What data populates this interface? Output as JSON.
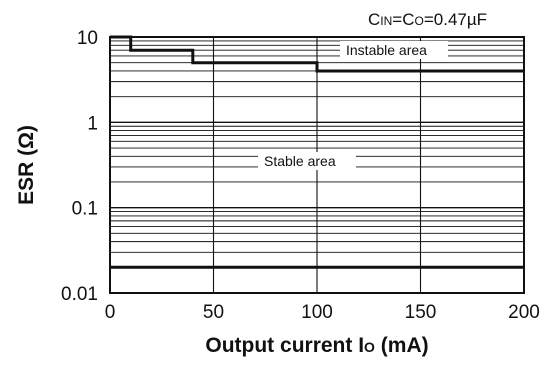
{
  "chart_data": {
    "type": "line",
    "condition": {
      "c_in": "C",
      "c_in_sub": "IN",
      "eq1": "=",
      "c_o": "C",
      "c_o_sub": "O",
      "eq2": "=",
      "value": "0.47µF"
    },
    "xlabel": {
      "main": "Output current I",
      "sub": "O",
      "unit": " (mA)"
    },
    "ylabel": "ESR (Ω)",
    "xlim": [
      0,
      200
    ],
    "ylim": [
      0.01,
      10
    ],
    "yscale": "log",
    "x_ticks": [
      0,
      50,
      100,
      150,
      200
    ],
    "x_tick_labels": [
      "0",
      "50",
      "100",
      "150",
      "200"
    ],
    "y_ticks": [
      0.01,
      0.1,
      1,
      10
    ],
    "y_tick_labels": [
      "0.01",
      "0.1",
      "1",
      "10"
    ],
    "grid": true,
    "series": [
      {
        "role": "upper boundary",
        "x": [
          0,
          10,
          10,
          40,
          40,
          100,
          100,
          200
        ],
        "y": [
          10,
          10,
          7,
          7,
          5,
          5,
          4,
          4
        ]
      },
      {
        "role": "lower boundary",
        "x": [
          0,
          200
        ],
        "y": [
          0.02,
          0.02
        ]
      }
    ],
    "annotations": {
      "instable": "Instable area",
      "stable": "Stable area"
    }
  }
}
